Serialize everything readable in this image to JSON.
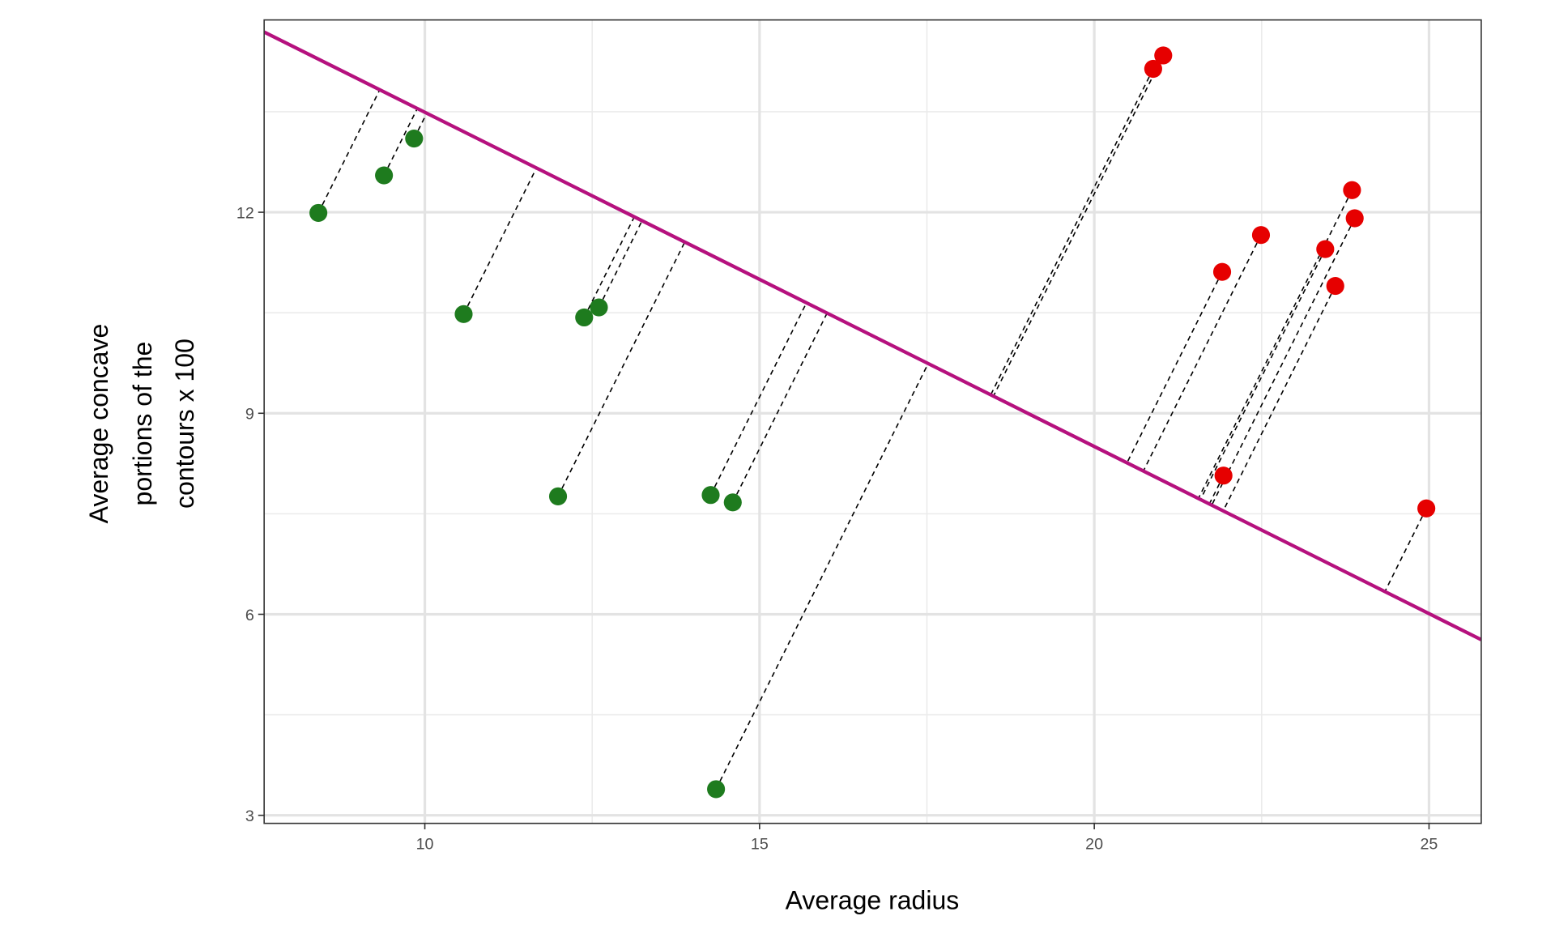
{
  "chart_data": {
    "type": "scatter",
    "title": "",
    "xlabel": "Average radius",
    "ylabel_lines": [
      "Average concave",
      "portions of the",
      "contours x 100"
    ],
    "xlim": [
      7.6,
      25.78
    ],
    "ylim": [
      2.88,
      14.87
    ],
    "xticks": [
      10,
      15,
      20,
      25
    ],
    "yticks": [
      3,
      6,
      9,
      12
    ],
    "xtick_labels": [
      "10",
      "15",
      "20",
      "25"
    ],
    "ytick_labels": [
      "3",
      "6",
      "9",
      "12"
    ],
    "grid": true,
    "line": {
      "intercept": 18.48,
      "slope": -0.4988,
      "color": "#b5117e"
    },
    "projection_lines": "dashed orthogonal projection of each point onto the line",
    "series": [
      {
        "name": "green",
        "color": "#1e7b1e",
        "points": [
          [
            8.41,
            11.99
          ],
          [
            9.39,
            12.55
          ],
          [
            9.84,
            13.1
          ],
          [
            10.58,
            10.48
          ],
          [
            12.38,
            10.43
          ],
          [
            12.6,
            10.58
          ],
          [
            11.99,
            7.76
          ],
          [
            14.27,
            7.78
          ],
          [
            14.6,
            7.67
          ],
          [
            14.35,
            3.39
          ]
        ]
      },
      {
        "name": "red",
        "color": "#e60000",
        "points": [
          [
            20.88,
            14.14
          ],
          [
            21.03,
            14.34
          ],
          [
            21.91,
            11.11
          ],
          [
            22.49,
            11.66
          ],
          [
            23.45,
            11.45
          ],
          [
            23.85,
            12.33
          ],
          [
            23.89,
            11.91
          ],
          [
            23.6,
            10.9
          ],
          [
            21.93,
            8.07
          ],
          [
            24.96,
            7.58
          ]
        ]
      }
    ]
  }
}
